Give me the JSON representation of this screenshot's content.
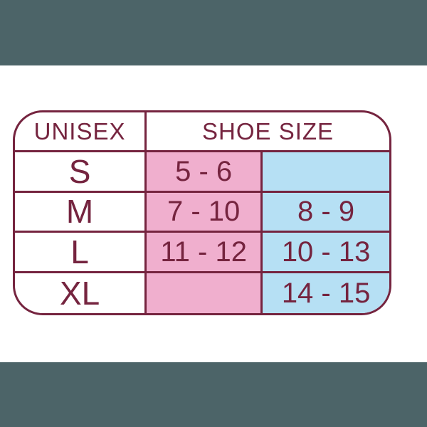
{
  "colors": {
    "maroon": "#75243F",
    "pink": "#F0AFCE",
    "blue": "#B6E0F4",
    "dark_band": "#4C6468",
    "white": "#FFFFFF"
  },
  "chart_data": {
    "type": "table",
    "header": {
      "unisex_label": "UNISEX",
      "shoe_size_label": "SHOE SIZE"
    },
    "rows": [
      {
        "size": "S",
        "pink_value": "5 - 6",
        "blue_value": ""
      },
      {
        "size": "M",
        "pink_value": "7 - 10",
        "blue_value": "8 - 9"
      },
      {
        "size": "L",
        "pink_value": "11 - 12",
        "blue_value": "10 - 13"
      },
      {
        "size": "XL",
        "pink_value": "",
        "blue_value": "14 - 15"
      }
    ]
  }
}
